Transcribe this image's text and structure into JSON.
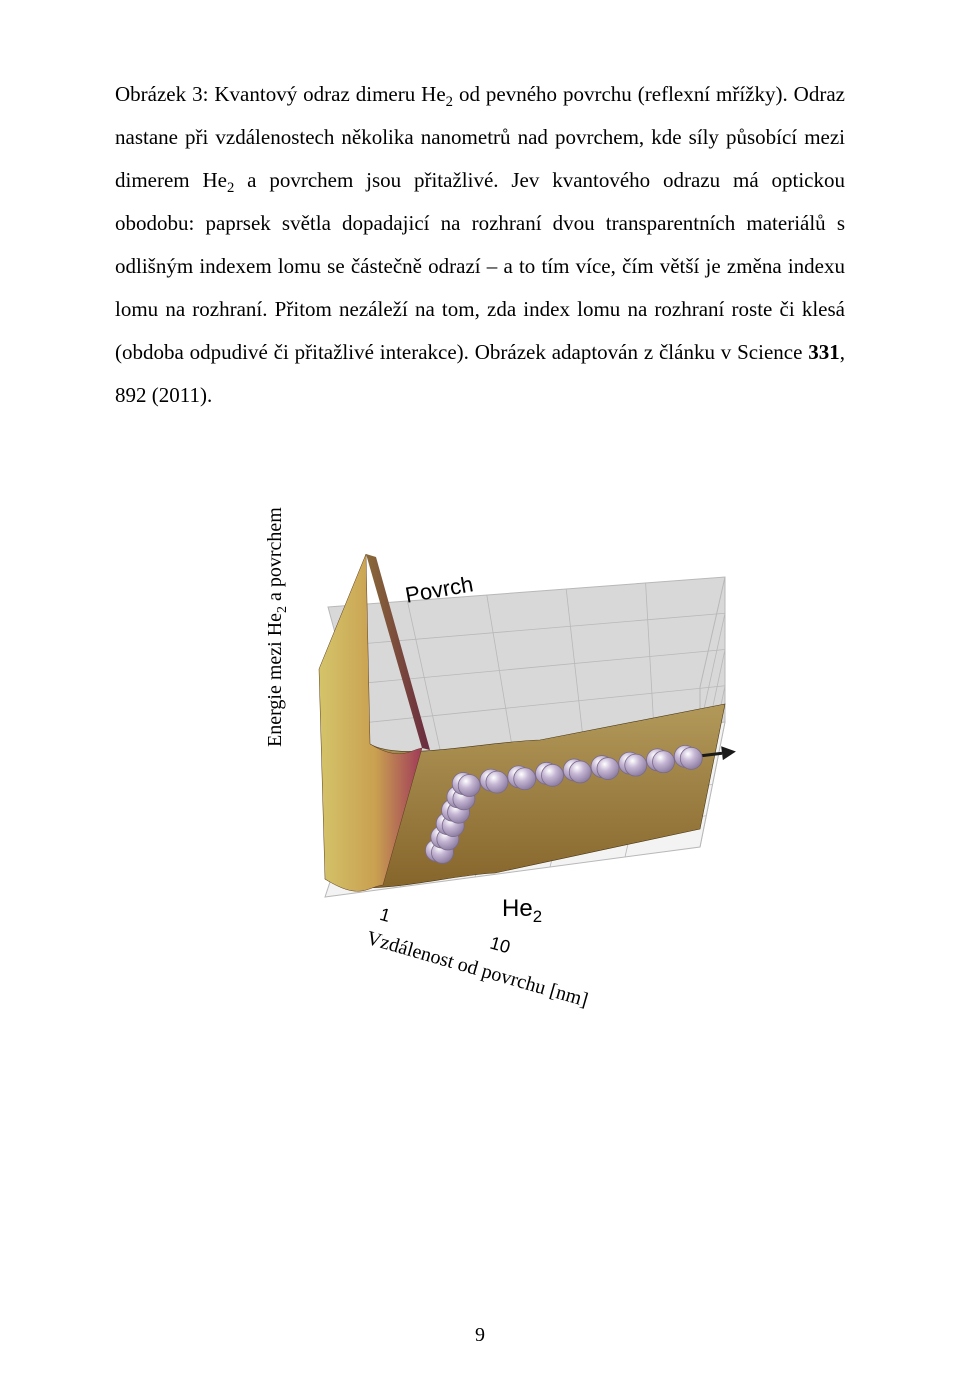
{
  "caption": {
    "label": "Obrázek 3:",
    "text_part1": " Kvantový odraz dimeru He",
    "sub1": "2",
    "text_part2": " od pevného povrchu (reflexní mřížky). Odraz nastane při vzdálenostech několika nanometrů nad povrchem, kde síly působící mezi dimerem He",
    "sub2": "2",
    "text_part3": " a povrchem jsou přitažlivé. Jev kvantového odrazu má optickou obodobu: paprsek světla dopadajicí na rozhraní dvou transparentních materiálů s odlišným indexem lomu se částečně odrazí – a to tím více, čím větší je změna indexu lomu na rozhraní. Přitom nezáleží na tom, zda index lomu na rozhraní roste či klesá (obdoba odpudivé či přitažlivé interakce). Obrázek adaptován z článku v Science ",
    "journal_vol": "331",
    "text_part4": ", 892 (2011)."
  },
  "figure": {
    "type": "3d-surface-diagram",
    "surface_label": "Povrch",
    "y_axis_label_prefix": "Energie mezi He",
    "y_axis_label_sub": "2",
    "y_axis_label_suffix": " a povrchem",
    "x_axis_label": "Vzdálenost od povrchu [nm]",
    "x_ticks": [
      "1",
      "10"
    ],
    "scale": "log",
    "particle_label_prefix": "He",
    "particle_label_sub": "2",
    "colors": {
      "wall_top": "#d4c46a",
      "wall_mid": "#c9a050",
      "wall_bot": "#a03a5a",
      "wall_shadow": "#6a2a40",
      "floor_front": "#86652b",
      "floor_back": "#b2995a",
      "grid_wall": "#d8d8d8",
      "grid_line": "#b8b8b8",
      "sphere_fill": "#c5b6d4",
      "sphere_stroke": "#7a6a8a",
      "arrow": "#1a1a1a",
      "text": "#000000"
    },
    "trajectory": {
      "incoming_start": [
        0.12,
        0.9
      ],
      "turn_point": [
        0.42,
        0.56
      ],
      "outgoing_end": [
        0.92,
        0.56
      ],
      "sphere_count_incoming": 6,
      "sphere_count_outgoing": 8,
      "sphere_radius": 11
    }
  },
  "page_number": "9"
}
